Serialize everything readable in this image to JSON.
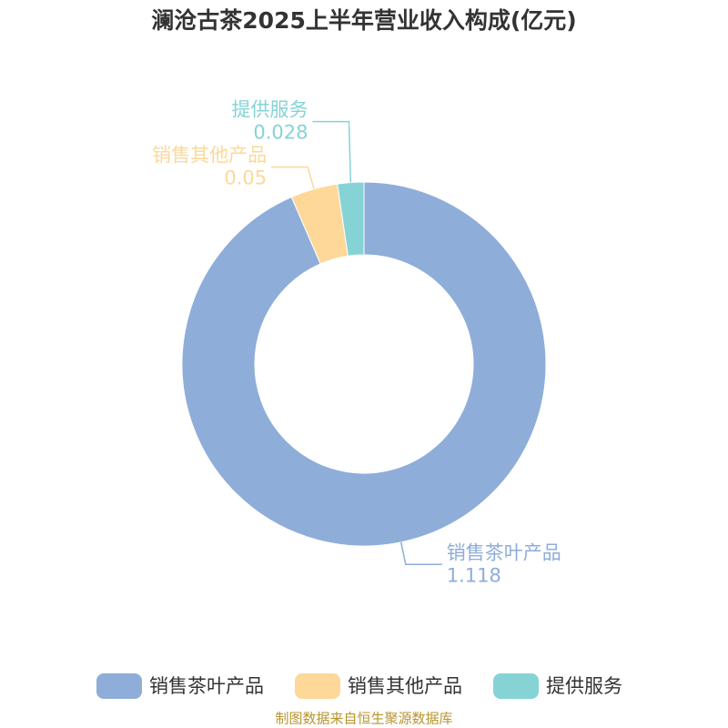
{
  "chart_data": {
    "type": "donut",
    "title": "澜沧古茶2025上半年营业收入构成(亿元)",
    "categories": [
      "销售茶叶产品",
      "销售其他产品",
      "提供服务"
    ],
    "values": [
      1.118,
      0.05,
      0.028
    ],
    "colors": [
      "#8eadd9",
      "#fdd899",
      "#86d3d6"
    ],
    "legend": "bottom",
    "source": "制图数据来自恒生聚源数据库"
  }
}
